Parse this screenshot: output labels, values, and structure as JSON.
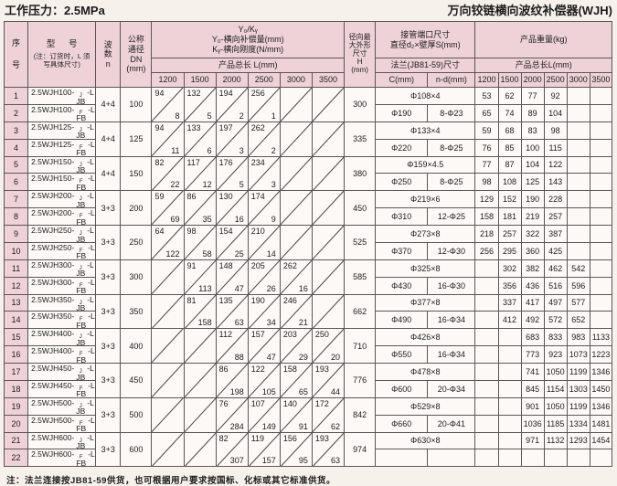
{
  "page": {
    "pressure_title": "工作压力：2.5MPa",
    "product_title": "万向铰链横向波纹补偿器(WJH)",
    "footnote": "注：法兰连接按JB81-59供货，也可根据用户要求按国标、化标或其它标准供货。"
  },
  "header": {
    "seq_lines": [
      "序",
      "号"
    ],
    "model_title": "型  号",
    "model_note_lines": [
      "(注：订货时，L 须",
      "写具体尺寸)"
    ],
    "wave_lines": [
      "波",
      "数",
      "n"
    ],
    "dn_lines": [
      "公称",
      "通径",
      "DN",
      "(mm)"
    ],
    "yk_lines": [
      "Y₀/Kᵧ",
      "Y₀-横向补偿量(mm)",
      "Kᵧ-横向刚度(N/mm)"
    ],
    "length_header_left": "产品总长 L(mm)",
    "h_lines": [
      "径向最",
      "大外形",
      "尺寸",
      "H",
      "(mm)"
    ],
    "pipe_lines": [
      "接管端口尺寸",
      "直径d₂×壁厚S(mm)"
    ],
    "flange_header": "法兰(JB81-59)尺寸",
    "c_col": "C(mm)",
    "nd_col": "n-d(mm)",
    "weight_header": "产品重量(kg)",
    "length_header_right": "产品总长L(mm)",
    "length_cols": [
      "1200",
      "1500",
      "2000",
      "2500",
      "3000",
      "3500"
    ]
  },
  "groups": [
    {
      "rows": [
        {
          "seq": "1",
          "model_prefix": "2.5WJH100-",
          "model_sup": "J",
          "model_mid": "JB",
          "model_suffix": "-L"
        },
        {
          "seq": "2",
          "model_prefix": "2.5WJH100-",
          "model_sup": "F",
          "model_mid": "FB",
          "model_suffix": "-L"
        }
      ],
      "wave": "4+4",
      "dn": "100",
      "yk": [
        {
          "y": "94",
          "k": "8"
        },
        {
          "y": "132",
          "k": "5"
        },
        {
          "y": "194",
          "k": "2"
        },
        {
          "y": "256",
          "k": "1"
        },
        null,
        null
      ],
      "h": "300",
      "pipe": "Φ108×4",
      "flange_c": "Φ190",
      "flange_nd": "8-Φ23",
      "w1": [
        "53",
        "62",
        "77",
        "92",
        "",
        ""
      ],
      "w2": [
        "65",
        "74",
        "89",
        "104",
        "",
        ""
      ]
    },
    {
      "rows": [
        {
          "seq": "3",
          "model_prefix": "2.5WJH125-",
          "model_sup": "J",
          "model_mid": "JB",
          "model_suffix": "-L"
        },
        {
          "seq": "4",
          "model_prefix": "2.5WJH125-",
          "model_sup": "F",
          "model_mid": "FB",
          "model_suffix": "-L"
        }
      ],
      "wave": "4+4",
      "dn": "125",
      "yk": [
        {
          "y": "94",
          "k": "11"
        },
        {
          "y": "133",
          "k": "6"
        },
        {
          "y": "197",
          "k": "3"
        },
        {
          "y": "262",
          "k": "2"
        },
        null,
        null
      ],
      "h": "335",
      "pipe": "Φ133×4",
      "flange_c": "Φ220",
      "flange_nd": "8-Φ25",
      "w1": [
        "59",
        "68",
        "83",
        "98",
        "",
        ""
      ],
      "w2": [
        "76",
        "85",
        "100",
        "115",
        "",
        ""
      ]
    },
    {
      "rows": [
        {
          "seq": "5",
          "model_prefix": "2.5WJH150-",
          "model_sup": "J",
          "model_mid": "JB",
          "model_suffix": "-L"
        },
        {
          "seq": "6",
          "model_prefix": "2.5WJH150-",
          "model_sup": "F",
          "model_mid": "FB",
          "model_suffix": "-L"
        }
      ],
      "wave": "4+4",
      "dn": "150",
      "yk": [
        {
          "y": "82",
          "k": "22"
        },
        {
          "y": "117",
          "k": "12"
        },
        {
          "y": "176",
          "k": "5"
        },
        {
          "y": "234",
          "k": "3"
        },
        null,
        null
      ],
      "h": "380",
      "pipe": "Φ159×4.5",
      "flange_c": "Φ250",
      "flange_nd": "8-Φ25",
      "w1": [
        "77",
        "87",
        "104",
        "122",
        "",
        ""
      ],
      "w2": [
        "98",
        "108",
        "125",
        "143",
        "",
        ""
      ]
    },
    {
      "rows": [
        {
          "seq": "7",
          "model_prefix": "2.5WJH200-",
          "model_sup": "J",
          "model_mid": "JB",
          "model_suffix": "-L"
        },
        {
          "seq": "8",
          "model_prefix": "2.5WJH200-",
          "model_sup": "F",
          "model_mid": "FB",
          "model_suffix": "-L"
        }
      ],
      "wave": "3+3",
      "dn": "200",
      "yk": [
        {
          "y": "59",
          "k": "69"
        },
        {
          "y": "86",
          "k": "35"
        },
        {
          "y": "130",
          "k": "16"
        },
        {
          "y": "174",
          "k": "9"
        },
        null,
        null
      ],
      "h": "450",
      "pipe": "Φ219×6",
      "flange_c": "Φ310",
      "flange_nd": "12-Φ25",
      "w1": [
        "129",
        "152",
        "190",
        "228",
        "",
        ""
      ],
      "w2": [
        "158",
        "181",
        "219",
        "257",
        "",
        ""
      ]
    },
    {
      "rows": [
        {
          "seq": "9",
          "model_prefix": "2.5WJH250-",
          "model_sup": "J",
          "model_mid": "JB",
          "model_suffix": "-L"
        },
        {
          "seq": "10",
          "model_prefix": "2.5WJH250-",
          "model_sup": "F",
          "model_mid": "FB",
          "model_suffix": "-L"
        }
      ],
      "wave": "3+3",
      "dn": "250",
      "yk": [
        {
          "y": "64",
          "k": "122"
        },
        {
          "y": "98",
          "k": "58"
        },
        {
          "y": "154",
          "k": "25"
        },
        {
          "y": "210",
          "k": "14"
        },
        null,
        null
      ],
      "h": "525",
      "pipe": "Φ273×8",
      "flange_c": "Φ370",
      "flange_nd": "12-Φ30",
      "w1": [
        "218",
        "257",
        "322",
        "387",
        "",
        ""
      ],
      "w2": [
        "256",
        "295",
        "360",
        "425",
        "",
        ""
      ]
    },
    {
      "rows": [
        {
          "seq": "11",
          "model_prefix": "2.5WJH300-",
          "model_sup": "J",
          "model_mid": "JB",
          "model_suffix": "-L"
        },
        {
          "seq": "12",
          "model_prefix": "2.5WJH300-",
          "model_sup": "F",
          "model_mid": "FB",
          "model_suffix": "-L"
        }
      ],
      "wave": "3+3",
      "dn": "300",
      "yk": [
        null,
        {
          "y": "91",
          "k": "113"
        },
        {
          "y": "148",
          "k": "47"
        },
        {
          "y": "205",
          "k": "26"
        },
        {
          "y": "262",
          "k": "16"
        },
        null
      ],
      "h": "585",
      "pipe": "Φ325×8",
      "flange_c": "Φ430",
      "flange_nd": "16-Φ30",
      "w1": [
        "",
        "302",
        "382",
        "462",
        "542",
        ""
      ],
      "w2": [
        "",
        "356",
        "436",
        "516",
        "596",
        ""
      ]
    },
    {
      "rows": [
        {
          "seq": "13",
          "model_prefix": "2.5WJH350-",
          "model_sup": "J",
          "model_mid": "JB",
          "model_suffix": "-L"
        },
        {
          "seq": "14",
          "model_prefix": "2.5WJH350-",
          "model_sup": "F",
          "model_mid": "FB",
          "model_suffix": "-L"
        }
      ],
      "wave": "3+3",
      "dn": "350",
      "yk": [
        null,
        {
          "y": "81",
          "k": "158"
        },
        {
          "y": "135",
          "k": "63"
        },
        {
          "y": "190",
          "k": "34"
        },
        {
          "y": "246",
          "k": "21"
        },
        null
      ],
      "h": "662",
      "pipe": "Φ377×8",
      "flange_c": "Φ490",
      "flange_nd": "16-Φ34",
      "w1": [
        "",
        "337",
        "417",
        "497",
        "577",
        ""
      ],
      "w2": [
        "",
        "412",
        "492",
        "572",
        "652",
        ""
      ]
    },
    {
      "rows": [
        {
          "seq": "15",
          "model_prefix": "2.5WJH400-",
          "model_sup": "J",
          "model_mid": "JB",
          "model_suffix": "-L"
        },
        {
          "seq": "16",
          "model_prefix": "2.5WJH400-",
          "model_sup": "F",
          "model_mid": "FB",
          "model_suffix": "-L"
        }
      ],
      "wave": "3+3",
      "dn": "400",
      "yk": [
        null,
        null,
        {
          "y": "112",
          "k": "88"
        },
        {
          "y": "157",
          "k": "47"
        },
        {
          "y": "203",
          "k": "29"
        },
        {
          "y": "250",
          "k": "20"
        }
      ],
      "h": "710",
      "pipe": "Φ426×8",
      "flange_c": "Φ550",
      "flange_nd": "16-Φ34",
      "w1": [
        "",
        "",
        "683",
        "833",
        "983",
        "1133"
      ],
      "w2": [
        "",
        "",
        "773",
        "923",
        "1073",
        "1223"
      ]
    },
    {
      "rows": [
        {
          "seq": "17",
          "model_prefix": "2.5WJH450-",
          "model_sup": "J",
          "model_mid": "JB",
          "model_suffix": "-L"
        },
        {
          "seq": "18",
          "model_prefix": "2.5WJH450-",
          "model_sup": "F",
          "model_mid": "FB",
          "model_suffix": "-L"
        }
      ],
      "wave": "3+3",
      "dn": "450",
      "yk": [
        null,
        null,
        {
          "y": "86",
          "k": "198"
        },
        {
          "y": "122",
          "k": "105"
        },
        {
          "y": "158",
          "k": "65"
        },
        {
          "y": "193",
          "k": "44"
        }
      ],
      "h": "776",
      "pipe": "Φ478×8",
      "flange_c": "Φ600",
      "flange_nd": "20-Φ34",
      "w1": [
        "",
        "",
        "741",
        "1050",
        "1199",
        "1346"
      ],
      "w2": [
        "",
        "",
        "845",
        "1154",
        "1303",
        "1450"
      ]
    },
    {
      "rows": [
        {
          "seq": "19",
          "model_prefix": "2.5WJH500-",
          "model_sup": "J",
          "model_mid": "JB",
          "model_suffix": "-L"
        },
        {
          "seq": "20",
          "model_prefix": "2.5WJH500-",
          "model_sup": "F",
          "model_mid": "FB",
          "model_suffix": "-L"
        }
      ],
      "wave": "3+3",
      "dn": "500",
      "yk": [
        null,
        null,
        {
          "y": "76",
          "k": "284"
        },
        {
          "y": "107",
          "k": "149"
        },
        {
          "y": "140",
          "k": "91"
        },
        {
          "y": "172",
          "k": "62"
        }
      ],
      "h": "842",
      "pipe": "Φ529×8",
      "flange_c": "Φ660",
      "flange_nd": "20-Φ41",
      "w1": [
        "",
        "",
        "901",
        "1050",
        "1199",
        "1346"
      ],
      "w2": [
        "",
        "",
        "1036",
        "1185",
        "1334",
        "1481"
      ]
    },
    {
      "rows": [
        {
          "seq": "21",
          "model_prefix": "2.5WJH600-",
          "model_sup": "J",
          "model_mid": "JB",
          "model_suffix": "-L"
        },
        {
          "seq": "22",
          "model_prefix": "2.5WJH600-",
          "model_sup": "F",
          "model_mid": "FB",
          "model_suffix": "-L"
        }
      ],
      "wave": "3+3",
      "dn": "600",
      "yk": [
        null,
        null,
        {
          "y": "82",
          "k": "307"
        },
        {
          "y": "119",
          "k": "157"
        },
        {
          "y": "156",
          "k": "95"
        },
        {
          "y": "193",
          "k": "63"
        }
      ],
      "h": "974",
      "pipe": "Φ630×8",
      "flange_c": "",
      "flange_nd": "",
      "w1": [
        "",
        "",
        "971",
        "1132",
        "1293",
        "1454"
      ],
      "w2": [
        "",
        "",
        "",
        "",
        "",
        ""
      ]
    }
  ]
}
